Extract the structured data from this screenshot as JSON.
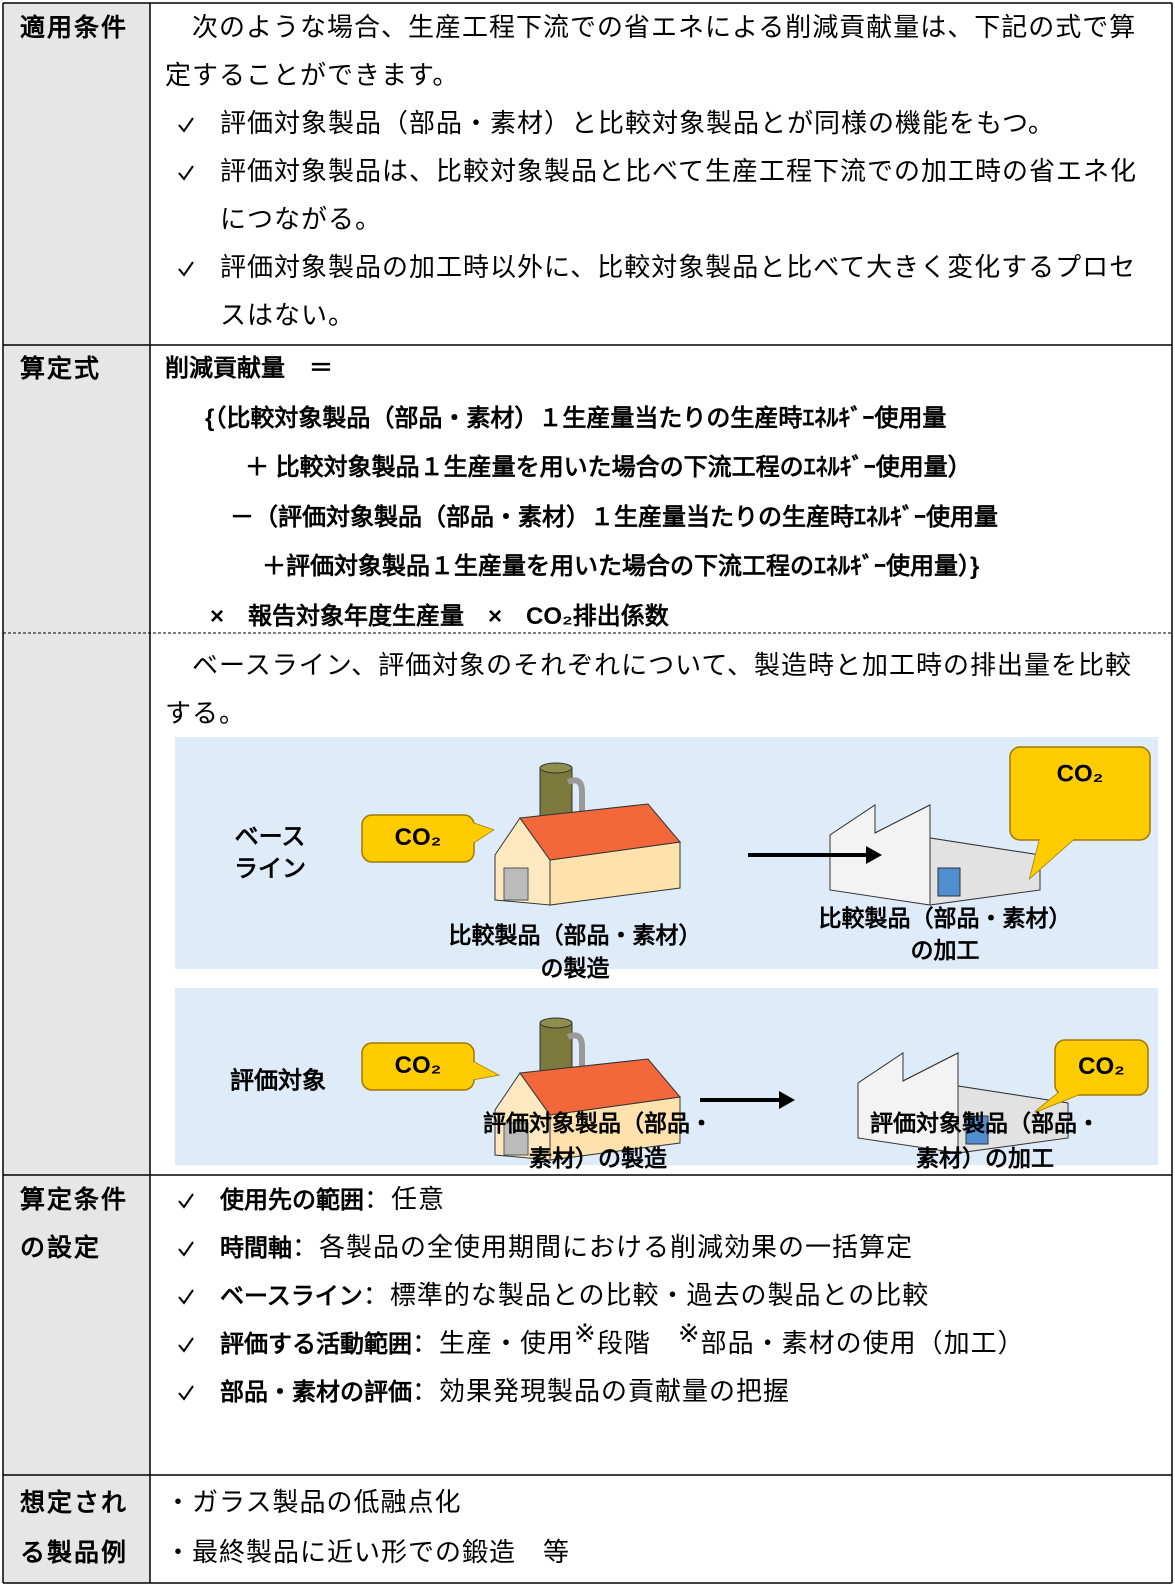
{
  "table": {
    "rows": [
      {
        "label": [
          "適用条件"
        ],
        "intro": [
          "次のような場合、生産工程下流での省エネによる削減貢献量は、下記の式で算",
          "定することができます。"
        ],
        "items": [
          [
            "評価対象製品（部品・素材）と比較対象製品とが同様の機能をもつ。"
          ],
          [
            "評価対象製品は、比較対象製品と比べて生産工程下流での加工時の省エネ化",
            "につながる。"
          ],
          [
            "評価対象製品の加工時以外に、比較対象製品と比べて大きく変化するプロセ",
            "スはない。"
          ]
        ]
      },
      {
        "label": [
          "算定式"
        ],
        "formula": [
          "削減貢献量　＝",
          "{（比較対象製品（部品・素材）１生産量当たりの生産時ｴﾈﾙｷﾞｰ使用量",
          "＋ 比較対象製品１生産量を用いた場合の下流工程のｴﾈﾙｷﾞｰ使用量）",
          "－（評価対象製品（部品・素材）１生産量当たりの生産時ｴﾈﾙｷﾞｰ使用量",
          "＋評価対象製品１生産量を用いた場合の下流工程のｴﾈﾙｷﾞｰ使用量）}",
          "×　報告対象年度生産量　×　CO₂排出係数"
        ],
        "intro": [
          "ベースライン、評価対象のそれぞれについて、製造時と加工時の排出量を比較",
          "する。"
        ],
        "diagram": {
          "panels": [
            {
              "label": [
                "ベース",
                "ライン"
              ],
              "bubbles": [
                "CO₂",
                "CO₂"
              ],
              "captions": [
                [
                  "比較製品（部品・素材）",
                  "の製造"
                ],
                [
                  "比較製品（部品・素材）",
                  "の加工"
                ]
              ]
            },
            {
              "label": [
                "評価対象"
              ],
              "bubbles": [
                "CO₂",
                "CO₂"
              ],
              "captions": [
                [
                  "評価対象製品（部品・",
                  "素材）の製造"
                ],
                [
                  "評価対象製品（部品・",
                  "素材）の加工"
                ]
              ]
            }
          ]
        }
      },
      {
        "label": [
          "算定条件",
          "の設定"
        ],
        "items": [
          {
            "term": "使用先の範囲",
            "desc": [
              "：任意"
            ]
          },
          {
            "term": "時間軸",
            "desc": [
              "：各製品の全使用期間における削減効果の一括算定"
            ]
          },
          {
            "term": "ベースライン",
            "desc": [
              "：標準的な製品との比較・過去の製品との比較"
            ]
          },
          {
            "term": "評価する活動範囲",
            "desc": [
              "：生産・使用",
              "※",
              "段階　",
              "※",
              "部品・素材の使用（加工）"
            ]
          },
          {
            "term": "部品・素材の評価",
            "desc": [
              "：効果発現製品の貢献量の把握"
            ]
          }
        ]
      },
      {
        "label": [
          "想定され",
          "る製品例"
        ],
        "lines": [
          "・ガラス製品の低融点化",
          "・最終製品に近い形での鍛造　等"
        ]
      }
    ]
  }
}
